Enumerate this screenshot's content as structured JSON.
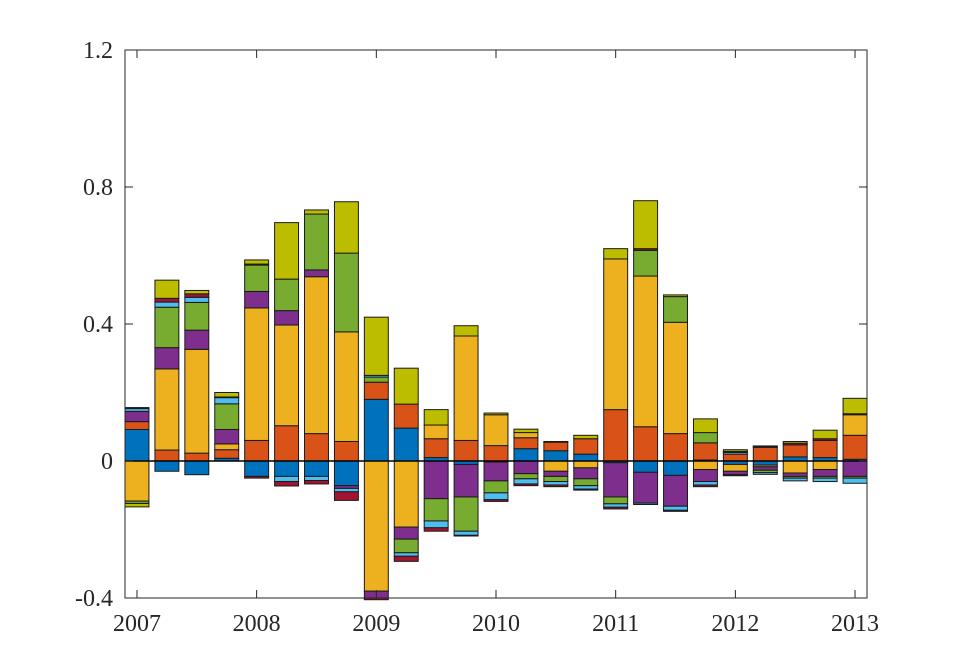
{
  "chart_data": {
    "type": "bar",
    "stacked": true,
    "title": "",
    "xlabel": "",
    "ylabel": "",
    "ylim": [
      -0.4,
      1.2
    ],
    "xlim": [
      2006.9,
      2013.1
    ],
    "yticks": [
      -0.4,
      0,
      0.4,
      0.8,
      1.2
    ],
    "ytick_labels": [
      "-0.4",
      "0",
      "0.4",
      "0.8",
      "1.2"
    ],
    "xticks": [
      2007,
      2008,
      2009,
      2010,
      2011,
      2012,
      2013
    ],
    "xtick_labels": [
      "2007",
      "2008",
      "2009",
      "2010",
      "2011",
      "2012",
      "2013"
    ],
    "bar_width": 0.2,
    "series_colors": [
      "#0072BD",
      "#D95319",
      "#EDB120",
      "#7E2F8E",
      "#77AC30",
      "#4DBEEE",
      "#A2142F",
      "#BDBD00"
    ],
    "x": [
      2007.0,
      2007.25,
      2007.5,
      2007.75,
      2008.0,
      2008.25,
      2008.5,
      2008.75,
      2009.0,
      2009.25,
      2009.5,
      2009.75,
      2010.0,
      2010.25,
      2010.5,
      2010.75,
      2011.0,
      2011.25,
      2011.5,
      2011.75,
      2012.0,
      2012.25,
      2012.5,
      2012.75,
      2013.0
    ],
    "bars": [
      [
        0.092,
        0.023,
        -0.117,
        0.03,
        -0.007,
        0.008,
        0.003,
        -0.01
      ],
      [
        -0.03,
        0.032,
        0.237,
        0.062,
        0.118,
        0.015,
        0.011,
        0.053
      ],
      [
        -0.04,
        0.023,
        0.303,
        0.056,
        0.081,
        0.015,
        0.01,
        0.01
      ],
      [
        0.008,
        0.025,
        0.017,
        0.042,
        0.075,
        0.018,
        0.002,
        0.013
      ],
      [
        -0.045,
        0.06,
        0.387,
        0.048,
        0.077,
        0.003,
        -0.005,
        0.012
      ],
      [
        -0.045,
        0.103,
        0.294,
        0.042,
        0.092,
        -0.015,
        -0.013,
        0.165
      ],
      [
        -0.045,
        0.08,
        0.458,
        0.02,
        0.163,
        -0.012,
        -0.01,
        0.012
      ],
      [
        -0.072,
        0.057,
        0.32,
        -0.008,
        0.23,
        -0.01,
        -0.025,
        0.15
      ],
      [
        0.18,
        0.05,
        -0.38,
        -0.02,
        0.015,
        0.005,
        -0.005,
        0.17
      ],
      [
        0.096,
        0.07,
        -0.193,
        -0.035,
        -0.04,
        -0.01,
        -0.015,
        0.105
      ],
      [
        0.01,
        0.055,
        0.04,
        -0.11,
        -0.065,
        -0.02,
        -0.01,
        0.045
      ],
      [
        -0.01,
        0.06,
        0.305,
        -0.095,
        -0.1,
        -0.012,
        -0.002,
        0.03
      ],
      [
        -0.003,
        0.045,
        0.09,
        -0.055,
        -0.035,
        -0.02,
        -0.005,
        0.005
      ],
      [
        0.036,
        0.032,
        0.015,
        -0.037,
        -0.015,
        -0.015,
        -0.005,
        0.01
      ],
      [
        0.03,
        0.025,
        -0.03,
        -0.015,
        -0.015,
        -0.01,
        -0.005,
        0.002
      ],
      [
        0.02,
        0.045,
        -0.02,
        -0.032,
        -0.02,
        -0.01,
        -0.003,
        0.01
      ],
      [
        -0.005,
        0.15,
        0.44,
        -0.1,
        -0.02,
        -0.01,
        -0.005,
        0.03
      ],
      [
        -0.033,
        0.1,
        0.44,
        -0.09,
        0.075,
        -0.004,
        0.005,
        0.14
      ],
      [
        -0.042,
        0.08,
        0.325,
        -0.09,
        0.075,
        -0.012,
        -0.003,
        0.005
      ],
      [
        0.003,
        0.05,
        -0.025,
        -0.035,
        0.03,
        -0.01,
        -0.005,
        0.04
      ],
      [
        -0.01,
        0.02,
        -0.02,
        -0.01,
        -0.003,
        0.005,
        0.003,
        0.005
      ],
      [
        -0.012,
        0.04,
        -0.005,
        -0.01,
        -0.007,
        -0.005,
        0.002,
        0.002
      ],
      [
        0.012,
        0.035,
        -0.035,
        -0.01,
        -0.005,
        -0.008,
        0.005,
        0.005
      ],
      [
        0.01,
        0.05,
        -0.025,
        -0.02,
        -0.005,
        -0.01,
        0.005,
        0.025
      ],
      [
        0.005,
        0.07,
        0.06,
        -0.045,
        -0.005,
        -0.015,
        0.003,
        0.045
      ]
    ]
  }
}
